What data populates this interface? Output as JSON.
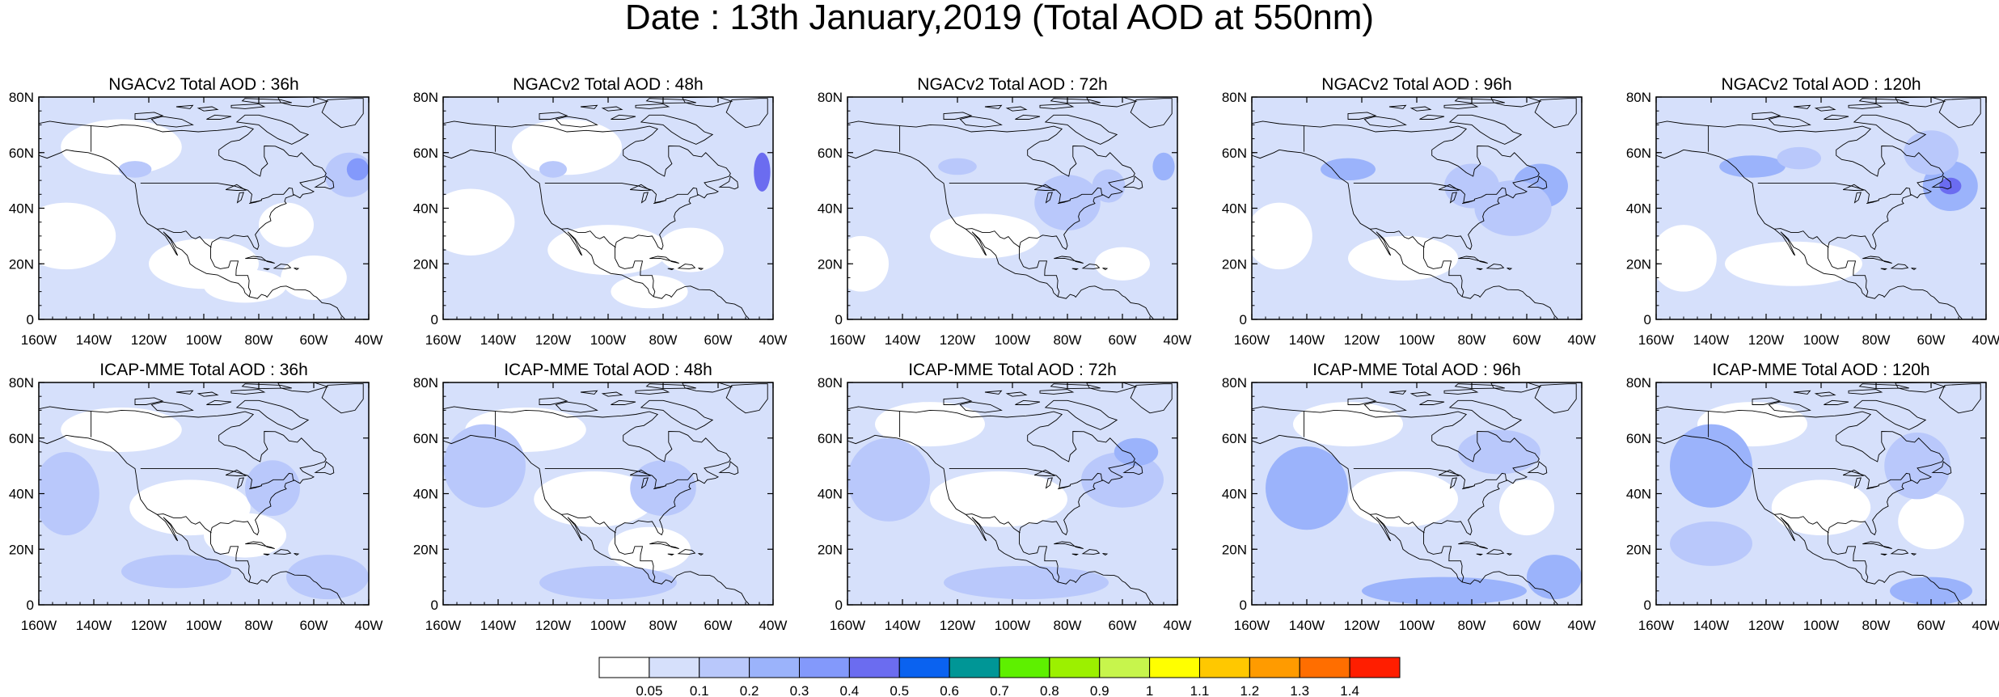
{
  "title": "Date : 13th January,2019 (Total AOD at 550nm)",
  "axes": {
    "lon_ticks": [
      "160W",
      "140W",
      "120W",
      "100W",
      "80W",
      "60W",
      "40W"
    ],
    "lat_ticks": [
      "80N",
      "60N",
      "40N",
      "20N",
      "0"
    ],
    "lon_range": [
      -160,
      -40
    ],
    "lat_range": [
      0,
      80
    ]
  },
  "rows": [
    {
      "model": "NGACv2",
      "panels": [
        {
          "title": "NGACv2 Total AOD : 36h"
        },
        {
          "title": "NGACv2 Total AOD : 48h"
        },
        {
          "title": "NGACv2 Total AOD : 72h"
        },
        {
          "title": "NGACv2 Total AOD : 96h"
        },
        {
          "title": "NGACv2 Total AOD : 120h"
        }
      ]
    },
    {
      "model": "ICAP-MME",
      "panels": [
        {
          "title": "ICAP-MME Total AOD : 36h"
        },
        {
          "title": "ICAP-MME Total AOD : 48h"
        },
        {
          "title": "ICAP-MME Total AOD : 72h"
        },
        {
          "title": "ICAP-MME Total AOD : 96h"
        },
        {
          "title": "ICAP-MME Total AOD : 120h"
        }
      ]
    }
  ],
  "colorbar": {
    "labels": [
      "0.05",
      "0.1",
      "0.2",
      "0.3",
      "0.4",
      "0.5",
      "0.6",
      "0.7",
      "0.8",
      "0.9",
      "1",
      "1.1",
      "1.2",
      "1.3",
      "1.4"
    ],
    "colors": [
      "#ffffff",
      "#d6e0fb",
      "#b9c8fb",
      "#9bb3fb",
      "#8399fb",
      "#6b6cf0",
      "#0a62f0",
      "#009696",
      "#5ef000",
      "#9cf000",
      "#c7f54c",
      "#ffff00",
      "#ffc800",
      "#ff9b00",
      "#ff6e00",
      "#ff1e00"
    ]
  },
  "map_colors": {
    "background": "#d6e0fb",
    "clear": "#ffffff",
    "moderate": "#b9c8fb",
    "high": "#9bb3fb",
    "very_high": "#8399fb",
    "peak": "#6b6cf0",
    "coast": "#000000"
  }
}
